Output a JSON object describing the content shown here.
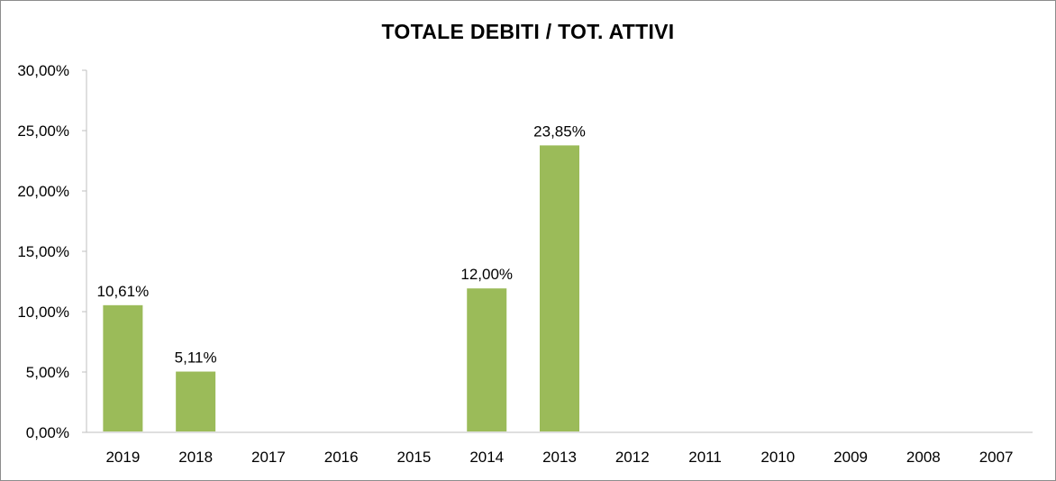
{
  "chart_data": {
    "type": "bar",
    "title": "TOTALE DEBITI / TOT. ATTIVI",
    "categories": [
      "2019",
      "2018",
      "2017",
      "2016",
      "2015",
      "2014",
      "2013",
      "2012",
      "2011",
      "2010",
      "2009",
      "2008",
      "2007"
    ],
    "values": [
      10.61,
      5.11,
      null,
      null,
      null,
      12.0,
      23.85,
      null,
      null,
      null,
      null,
      null,
      null
    ],
    "data_labels": [
      "10,61%",
      "5,11%",
      "",
      "",
      "",
      "12,00%",
      "23,85%",
      "",
      "",
      "",
      "",
      "",
      ""
    ],
    "y_tick_labels": [
      "0,00%",
      "5,00%",
      "10,00%",
      "15,00%",
      "20,00%",
      "25,00%",
      "30,00%"
    ],
    "ylim": [
      0,
      30
    ],
    "grid": false,
    "legend": "none",
    "bar_color": "#9bbb59",
    "axis_color": "#bfbfbf"
  }
}
